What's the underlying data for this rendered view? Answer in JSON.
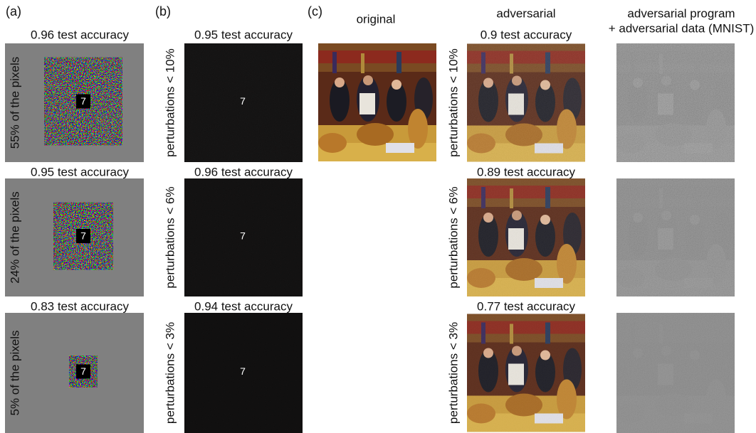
{
  "panels": {
    "a": {
      "label": "(a)",
      "rows": [
        {
          "caption": "0.96 test accuracy",
          "side": "55% of the pixels"
        },
        {
          "caption": "0.95 test accuracy",
          "side": "24% of the pixels"
        },
        {
          "caption": "0.83 test accuracy",
          "side": "5% of the pixels"
        }
      ]
    },
    "b": {
      "label": "(b)",
      "rows": [
        {
          "caption": "0.95 test accuracy",
          "side": "perturbations < 10%"
        },
        {
          "caption": "0.96 test accuracy",
          "side": "perturbations < 6%"
        },
        {
          "caption": "0.94 test accuracy",
          "side": "perturbations < 3%"
        }
      ]
    },
    "c": {
      "label": "(c)",
      "headers": {
        "original": "original",
        "adversarial": "adversarial",
        "combined": [
          "adversarial program",
          "+ adversarial data (MNIST)"
        ]
      },
      "rows": [
        {
          "caption": "0.9 test accuracy",
          "side": "perturbations < 10%"
        },
        {
          "caption": "0.89 test accuracy",
          "side": "perturbations < 6%"
        },
        {
          "caption": "0.77 test accuracy",
          "side": "perturbations < 3%"
        }
      ]
    }
  },
  "digit": "7"
}
